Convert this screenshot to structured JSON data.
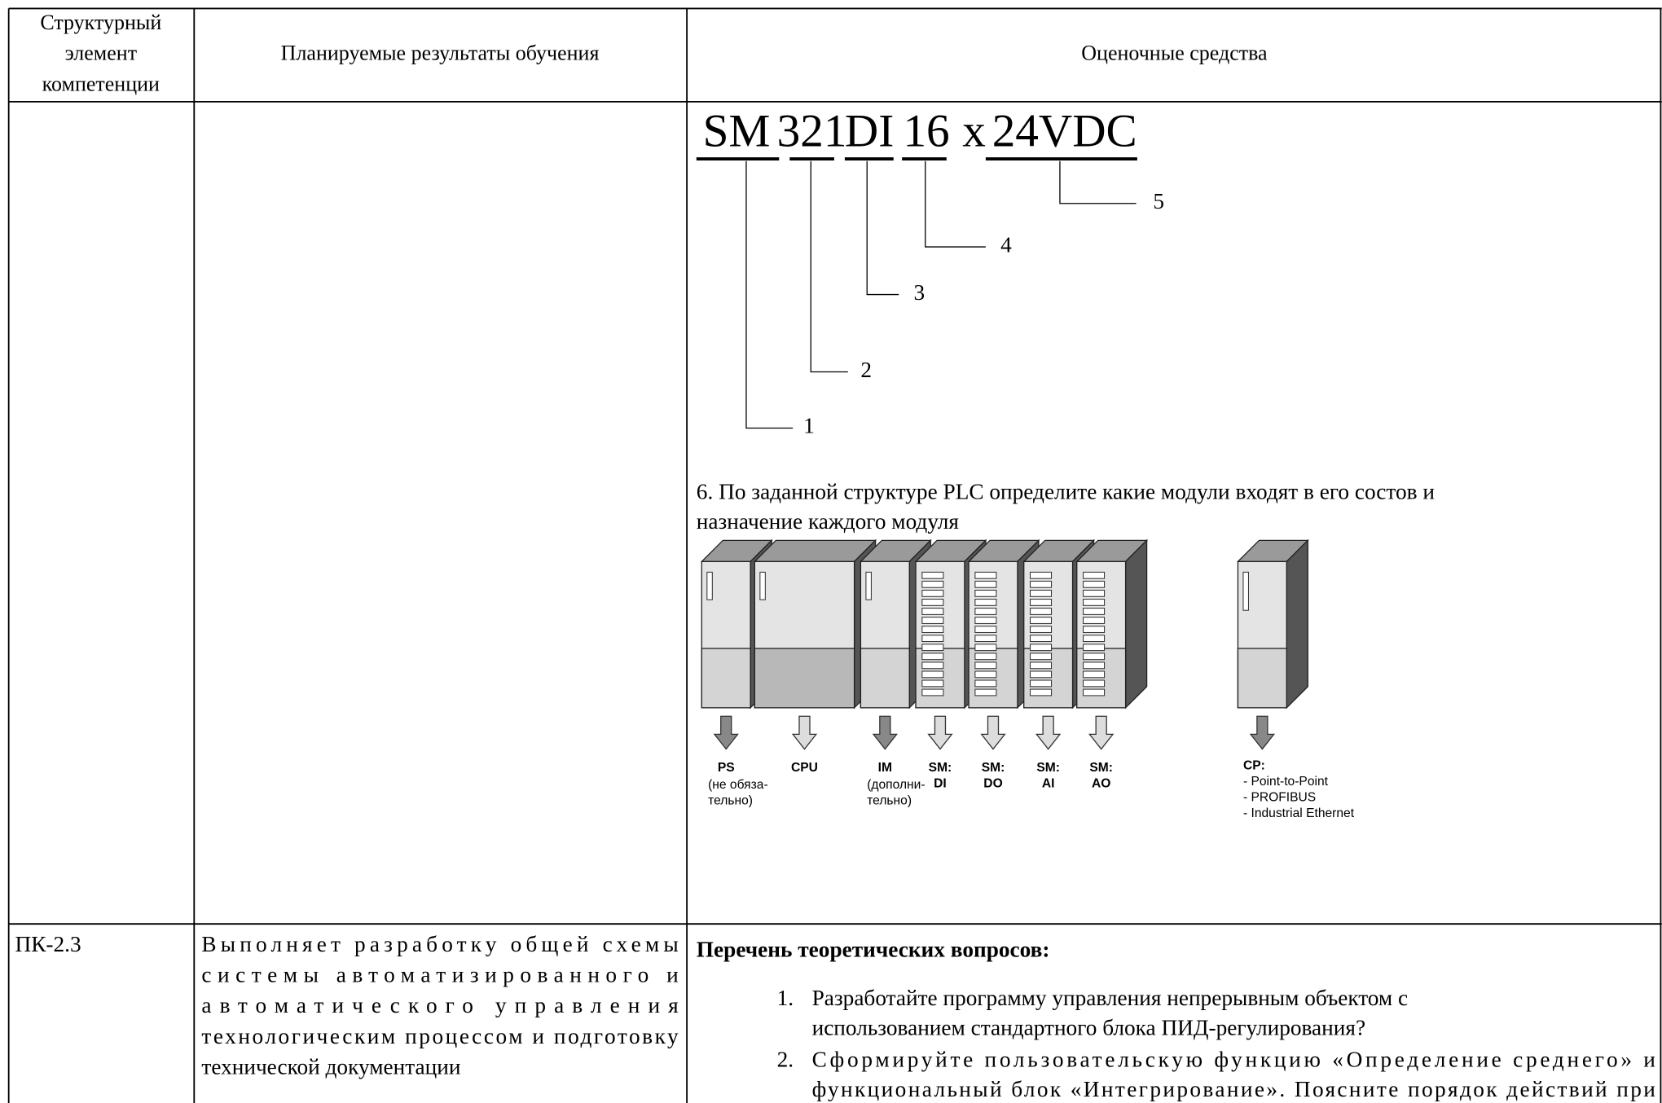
{
  "table": {
    "header": {
      "competence": [
        "Структурный",
        "элемент",
        "компетенции"
      ],
      "results": "Планируемые результаты обучения",
      "assessment": "Оценочные средства"
    },
    "rows": [
      {
        "assessment": {
          "code": {
            "parts": [
              "SM",
              "321",
              "DI",
              "16",
              "x",
              "24VDC"
            ],
            "callouts": [
              "1",
              "2",
              "3",
              "4",
              "5"
            ]
          },
          "question": [
            "6. По заданной структуре PLC определите какие модули входят в его состов и",
            "назначение каждого модуля"
          ],
          "plc": {
            "modules": [
              {
                "name": [
                  "PS"
                ],
                "note": [
                  "(не обяза-",
                  "тельно)"
                ]
              },
              {
                "name": [
                  "CPU"
                ]
              },
              {
                "name": [
                  "IM"
                ],
                "note": [
                  "(дополни-",
                  "тельно)"
                ]
              },
              {
                "name": [
                  "SM:",
                  "DI"
                ]
              },
              {
                "name": [
                  "SM:",
                  "DO"
                ]
              },
              {
                "name": [
                  "SM:",
                  "AI"
                ]
              },
              {
                "name": [
                  "SM:",
                  "AO"
                ]
              }
            ],
            "cp": {
              "name": "CP:",
              "options": [
                "- Point-to-Point",
                "- PROFIBUS",
                "- Industrial Ethernet"
              ]
            }
          }
        }
      },
      {
        "competence": "ПК-2.3",
        "results": [
          "Выполняет разработку общей схемы",
          "системы автоматизированного и",
          "автоматического управления",
          "технологическим процессом и подготовку",
          "технической документации"
        ],
        "assessment": {
          "heading": "Перечень теоретических вопросов:",
          "items": [
            {
              "number": "1.",
              "lines": [
                "Разработайте программу управления непрерывным объектом с",
                "использованием стандартного блока ПИД-регулирования?"
              ]
            },
            {
              "number": "2.",
              "lines": [
                "Сформируйте пользовательскую функцию «Определение среднего» и",
                "функциональный блок «Интегрирование». Поясните порядок действий при"
              ]
            }
          ]
        }
      }
    ]
  }
}
